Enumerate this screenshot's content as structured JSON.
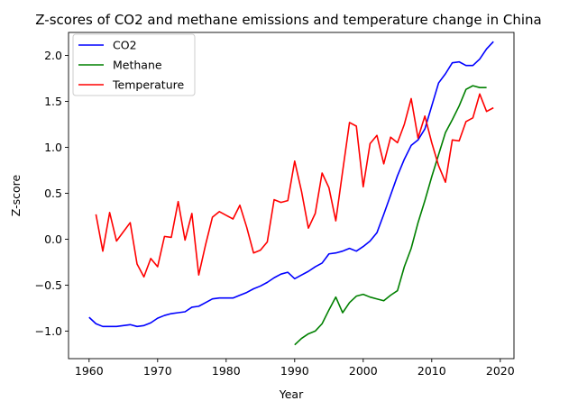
{
  "chart_data": {
    "type": "line",
    "title": "Z-scores of CO2 and methane emissions and temperature change in China",
    "xlabel": "Year",
    "ylabel": "Z-score",
    "xlim": [
      1957,
      2022
    ],
    "ylim": [
      -1.3,
      2.25
    ],
    "xticks": [
      1960,
      1970,
      1980,
      1990,
      2000,
      2010,
      2020
    ],
    "yticks": [
      -1.0,
      -0.5,
      0.0,
      0.5,
      1.0,
      1.5,
      2.0
    ],
    "xtick_labels": [
      "1960",
      "1970",
      "1980",
      "1990",
      "2000",
      "2010",
      "2020"
    ],
    "ytick_labels": [
      "−1.0",
      "−0.5",
      "0.0",
      "0.5",
      "1.0",
      "1.5",
      "2.0"
    ],
    "grid": false,
    "legend_position": "top-left",
    "series": [
      {
        "name": "CO2",
        "color": "#0000ff",
        "x": [
          1960,
          1961,
          1962,
          1963,
          1964,
          1965,
          1966,
          1967,
          1968,
          1969,
          1970,
          1971,
          1972,
          1973,
          1974,
          1975,
          1976,
          1977,
          1978,
          1979,
          1980,
          1981,
          1982,
          1983,
          1984,
          1985,
          1986,
          1987,
          1988,
          1989,
          1990,
          1991,
          1992,
          1993,
          1994,
          1995,
          1996,
          1997,
          1998,
          1999,
          2000,
          2001,
          2002,
          2003,
          2004,
          2005,
          2006,
          2007,
          2008,
          2009,
          2010,
          2011,
          2012,
          2013,
          2014,
          2015,
          2016,
          2017,
          2018,
          2019
        ],
        "y": [
          -0.85,
          -0.92,
          -0.95,
          -0.95,
          -0.95,
          -0.94,
          -0.93,
          -0.95,
          -0.94,
          -0.91,
          -0.86,
          -0.83,
          -0.81,
          -0.8,
          -0.79,
          -0.74,
          -0.73,
          -0.69,
          -0.65,
          -0.64,
          -0.64,
          -0.64,
          -0.61,
          -0.58,
          -0.54,
          -0.51,
          -0.47,
          -0.42,
          -0.38,
          -0.36,
          -0.43,
          -0.39,
          -0.35,
          -0.3,
          -0.26,
          -0.16,
          -0.15,
          -0.13,
          -0.1,
          -0.13,
          -0.08,
          -0.02,
          0.07,
          0.27,
          0.48,
          0.69,
          0.87,
          1.02,
          1.08,
          1.2,
          1.45,
          1.7,
          1.8,
          1.92,
          1.93,
          1.89,
          1.89,
          1.96,
          2.07,
          2.15
        ]
      },
      {
        "name": "Methane",
        "color": "#008000",
        "x": [
          1990,
          1991,
          1992,
          1993,
          1994,
          1995,
          1996,
          1997,
          1998,
          1999,
          2000,
          2001,
          2002,
          2003,
          2004,
          2005,
          2006,
          2007,
          2008,
          2009,
          2010,
          2011,
          2012,
          2013,
          2014,
          2015,
          2016,
          2017,
          2018
        ],
        "y": [
          -1.15,
          -1.08,
          -1.03,
          -1.0,
          -0.92,
          -0.77,
          -0.63,
          -0.8,
          -0.69,
          -0.62,
          -0.6,
          -0.63,
          -0.65,
          -0.67,
          -0.61,
          -0.56,
          -0.3,
          -0.1,
          0.18,
          0.42,
          0.68,
          0.92,
          1.16,
          1.3,
          1.45,
          1.63,
          1.67,
          1.65,
          1.65
        ]
      },
      {
        "name": "Temperature",
        "color": "#ff0000",
        "x": [
          1961,
          1962,
          1963,
          1964,
          1965,
          1966,
          1967,
          1968,
          1969,
          1970,
          1971,
          1972,
          1973,
          1974,
          1975,
          1976,
          1977,
          1978,
          1979,
          1980,
          1981,
          1982,
          1983,
          1984,
          1985,
          1986,
          1987,
          1988,
          1989,
          1990,
          1991,
          1992,
          1993,
          1994,
          1995,
          1996,
          1997,
          1998,
          1999,
          2000,
          2001,
          2002,
          2003,
          2004,
          2005,
          2006,
          2007,
          2008,
          2009,
          2010,
          2011,
          2012,
          2013,
          2014,
          2015,
          2016,
          2017,
          2018,
          2019
        ],
        "y": [
          0.27,
          -0.13,
          0.29,
          -0.02,
          0.08,
          0.18,
          -0.27,
          -0.41,
          -0.21,
          -0.3,
          0.03,
          0.02,
          0.41,
          -0.01,
          0.28,
          -0.39,
          -0.06,
          0.24,
          0.3,
          0.26,
          0.22,
          0.37,
          0.13,
          -0.15,
          -0.12,
          -0.03,
          0.43,
          0.4,
          0.42,
          0.85,
          0.52,
          0.12,
          0.28,
          0.72,
          0.56,
          0.2,
          0.74,
          1.27,
          1.23,
          0.57,
          1.04,
          1.13,
          0.82,
          1.11,
          1.05,
          1.25,
          1.53,
          1.1,
          1.34,
          1.05,
          0.8,
          0.62,
          1.08,
          1.07,
          1.28,
          1.32,
          1.58,
          1.39,
          1.43
        ]
      }
    ]
  }
}
